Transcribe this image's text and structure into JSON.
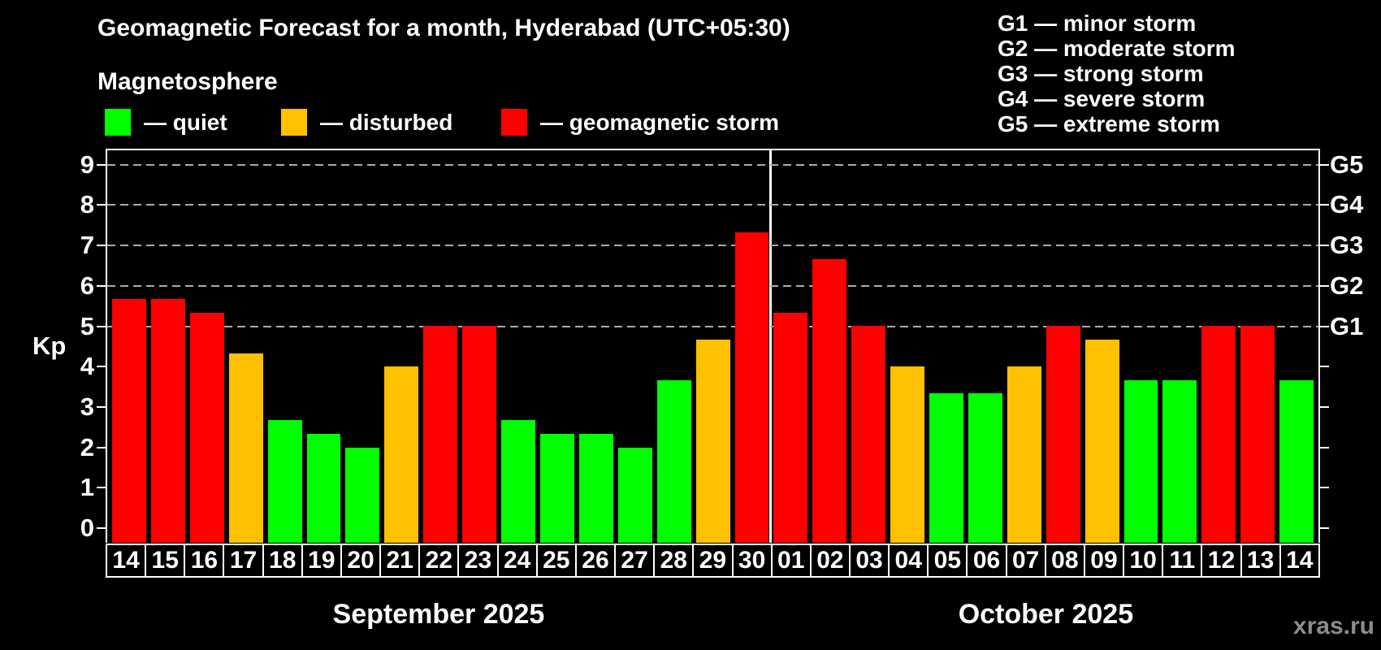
{
  "title": "Geomagnetic Forecast for a month, Hyderabad (UTC+05:30)",
  "subtitle": "Magnetosphere",
  "legend": {
    "items": [
      {
        "status": "quiet",
        "label": "— quiet",
        "color": "#00ff00"
      },
      {
        "status": "disturbed",
        "label": "— disturbed",
        "color": "#ffc000"
      },
      {
        "status": "storm",
        "label": "— geomagnetic storm",
        "color": "#ff0000"
      }
    ]
  },
  "g_legend": [
    "G1 — minor storm",
    "G2 — moderate storm",
    "G3 — strong storm",
    "G4 — severe storm",
    "G5 — extreme storm"
  ],
  "watermark": "xras.ru",
  "chart_data": {
    "type": "bar",
    "title": "Geomagnetic Forecast for a month, Hyderabad (UTC+05:30)",
    "ylabel": "Kp",
    "ylim": [
      0,
      9
    ],
    "yticks": [
      0,
      1,
      2,
      3,
      4,
      5,
      6,
      7,
      8,
      9
    ],
    "gridlines_at": [
      5,
      6,
      7,
      8,
      9
    ],
    "grid_on": true,
    "right_axis": [
      {
        "value": 5,
        "label": "G1"
      },
      {
        "value": 6,
        "label": "G2"
      },
      {
        "value": 7,
        "label": "G3"
      },
      {
        "value": 8,
        "label": "G4"
      },
      {
        "value": 9,
        "label": "G5"
      }
    ],
    "months": [
      {
        "label": "September 2025",
        "count": 17
      },
      {
        "label": "October 2025",
        "count": 14
      }
    ],
    "categories": [
      "14",
      "15",
      "16",
      "17",
      "18",
      "19",
      "20",
      "21",
      "22",
      "23",
      "24",
      "25",
      "26",
      "27",
      "28",
      "29",
      "30",
      "01",
      "02",
      "03",
      "04",
      "05",
      "06",
      "07",
      "08",
      "09",
      "10",
      "11",
      "12",
      "13",
      "14"
    ],
    "values": [
      5.67,
      5.67,
      5.33,
      4.33,
      2.67,
      2.33,
      2.0,
      4.0,
      5.0,
      5.0,
      2.67,
      2.33,
      2.33,
      2.0,
      3.67,
      4.67,
      7.33,
      5.33,
      6.67,
      5.0,
      4.0,
      3.33,
      3.33,
      4.0,
      5.0,
      4.67,
      3.67,
      3.67,
      5.0,
      5.0,
      3.67
    ],
    "statuses": [
      "storm",
      "storm",
      "storm",
      "disturbed",
      "quiet",
      "quiet",
      "quiet",
      "disturbed",
      "storm",
      "storm",
      "quiet",
      "quiet",
      "quiet",
      "quiet",
      "quiet",
      "disturbed",
      "storm",
      "storm",
      "storm",
      "storm",
      "disturbed",
      "quiet",
      "quiet",
      "disturbed",
      "storm",
      "disturbed",
      "quiet",
      "quiet",
      "storm",
      "storm",
      "quiet"
    ],
    "status_colors": {
      "quiet": "#00ff00",
      "disturbed": "#ffc000",
      "storm": "#ff0000"
    },
    "grid_color": "#ababab",
    "frame_color": "#ffffff",
    "background_color": "#000000",
    "legend_position": "top"
  }
}
